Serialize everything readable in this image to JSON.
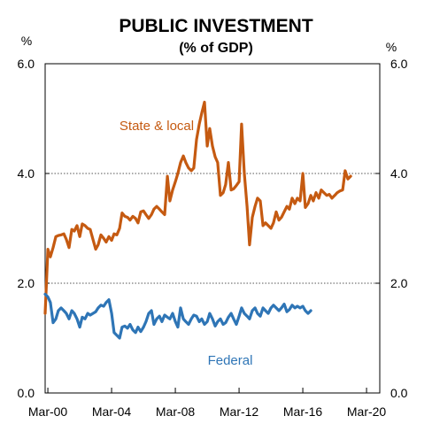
{
  "chart_data": {
    "type": "line",
    "title": "PUBLIC INVESTMENT",
    "subtitle": "(% of GDP)",
    "ylabel_left": "%",
    "ylabel_right": "%",
    "ylim": [
      0,
      6
    ],
    "yticks": [
      "0.0",
      "2.0",
      "4.0",
      "6.0"
    ],
    "xlim": [
      2000.0,
      2021.0
    ],
    "xticks": [
      {
        "x": 2000.17,
        "label": "Mar-00"
      },
      {
        "x": 2004.17,
        "label": "Mar-04"
      },
      {
        "x": 2008.17,
        "label": "Mar-08"
      },
      {
        "x": 2012.17,
        "label": "Mar-12"
      },
      {
        "x": 2016.17,
        "label": "Mar-16"
      },
      {
        "x": 2020.17,
        "label": "Mar-20"
      }
    ],
    "grid": "horizontal dotted at 2.0 and 4.0",
    "colors": {
      "state": "#c55a11",
      "federal": "#2e75b6"
    },
    "series": [
      {
        "name": "State & local",
        "color": "#c55a11",
        "points": [
          [
            2000.0,
            1.45
          ],
          [
            2000.17,
            2.62
          ],
          [
            2000.33,
            2.48
          ],
          [
            2000.5,
            2.65
          ],
          [
            2000.67,
            2.85
          ],
          [
            2000.83,
            2.87
          ],
          [
            2001.0,
            2.88
          ],
          [
            2001.17,
            2.9
          ],
          [
            2001.33,
            2.8
          ],
          [
            2001.5,
            2.65
          ],
          [
            2001.67,
            2.98
          ],
          [
            2001.83,
            2.95
          ],
          [
            2002.0,
            3.05
          ],
          [
            2002.17,
            2.85
          ],
          [
            2002.33,
            3.08
          ],
          [
            2002.5,
            3.05
          ],
          [
            2002.67,
            3.0
          ],
          [
            2002.83,
            2.98
          ],
          [
            2003.0,
            2.8
          ],
          [
            2003.17,
            2.62
          ],
          [
            2003.33,
            2.7
          ],
          [
            2003.5,
            2.88
          ],
          [
            2003.67,
            2.82
          ],
          [
            2003.83,
            2.75
          ],
          [
            2004.0,
            2.85
          ],
          [
            2004.17,
            2.78
          ],
          [
            2004.33,
            2.9
          ],
          [
            2004.5,
            2.88
          ],
          [
            2004.67,
            3.0
          ],
          [
            2004.83,
            3.28
          ],
          [
            2005.0,
            3.22
          ],
          [
            2005.17,
            3.2
          ],
          [
            2005.33,
            3.15
          ],
          [
            2005.5,
            3.22
          ],
          [
            2005.67,
            3.18
          ],
          [
            2005.83,
            3.1
          ],
          [
            2006.0,
            3.3
          ],
          [
            2006.17,
            3.32
          ],
          [
            2006.33,
            3.25
          ],
          [
            2006.5,
            3.18
          ],
          [
            2006.67,
            3.25
          ],
          [
            2006.83,
            3.35
          ],
          [
            2007.0,
            3.4
          ],
          [
            2007.17,
            3.35
          ],
          [
            2007.33,
            3.3
          ],
          [
            2007.5,
            3.25
          ],
          [
            2007.67,
            3.95
          ],
          [
            2007.83,
            3.5
          ],
          [
            2008.0,
            3.7
          ],
          [
            2008.17,
            3.85
          ],
          [
            2008.33,
            4.0
          ],
          [
            2008.5,
            4.2
          ],
          [
            2008.67,
            4.32
          ],
          [
            2008.83,
            4.2
          ],
          [
            2009.0,
            4.1
          ],
          [
            2009.17,
            4.05
          ],
          [
            2009.33,
            4.1
          ],
          [
            2009.5,
            4.62
          ],
          [
            2009.67,
            4.9
          ],
          [
            2009.83,
            5.1
          ],
          [
            2010.0,
            5.3
          ],
          [
            2010.17,
            4.5
          ],
          [
            2010.33,
            4.82
          ],
          [
            2010.5,
            4.5
          ],
          [
            2010.67,
            4.3
          ],
          [
            2010.83,
            4.2
          ],
          [
            2011.0,
            3.6
          ],
          [
            2011.17,
            3.65
          ],
          [
            2011.33,
            3.8
          ],
          [
            2011.5,
            4.2
          ],
          [
            2011.67,
            3.7
          ],
          [
            2011.83,
            3.72
          ],
          [
            2012.0,
            3.78
          ],
          [
            2012.17,
            3.85
          ],
          [
            2012.33,
            4.9
          ],
          [
            2012.5,
            4.0
          ],
          [
            2012.67,
            3.4
          ],
          [
            2012.83,
            2.7
          ],
          [
            2013.0,
            3.2
          ],
          [
            2013.17,
            3.4
          ],
          [
            2013.33,
            3.55
          ],
          [
            2013.5,
            3.5
          ],
          [
            2013.67,
            3.05
          ],
          [
            2013.83,
            3.1
          ],
          [
            2014.0,
            3.05
          ],
          [
            2014.17,
            3.0
          ],
          [
            2014.33,
            3.1
          ],
          [
            2014.5,
            3.3
          ],
          [
            2014.67,
            3.15
          ],
          [
            2014.83,
            3.2
          ],
          [
            2015.0,
            3.3
          ],
          [
            2015.17,
            3.4
          ],
          [
            2015.33,
            3.35
          ],
          [
            2015.5,
            3.55
          ],
          [
            2015.67,
            3.45
          ],
          [
            2015.83,
            3.55
          ],
          [
            2016.0,
            3.5
          ],
          [
            2016.17,
            4.0
          ],
          [
            2016.33,
            3.38
          ],
          [
            2016.5,
            3.45
          ],
          [
            2016.67,
            3.6
          ],
          [
            2016.83,
            3.5
          ],
          [
            2017.0,
            3.65
          ],
          [
            2017.17,
            3.55
          ],
          [
            2017.33,
            3.7
          ],
          [
            2017.5,
            3.65
          ],
          [
            2017.67,
            3.6
          ],
          [
            2017.83,
            3.62
          ],
          [
            2018.0,
            3.55
          ],
          [
            2018.17,
            3.6
          ],
          [
            2018.33,
            3.65
          ],
          [
            2018.5,
            3.68
          ],
          [
            2018.67,
            3.7
          ],
          [
            2018.83,
            4.05
          ],
          [
            2019.0,
            3.9
          ],
          [
            2019.17,
            3.95
          ]
        ]
      },
      {
        "name": "Federal",
        "color": "#2e75b6",
        "points": [
          [
            2000.0,
            1.8
          ],
          [
            2000.17,
            1.75
          ],
          [
            2000.33,
            1.65
          ],
          [
            2000.5,
            1.28
          ],
          [
            2000.67,
            1.35
          ],
          [
            2000.83,
            1.5
          ],
          [
            2001.0,
            1.55
          ],
          [
            2001.17,
            1.5
          ],
          [
            2001.33,
            1.45
          ],
          [
            2001.5,
            1.35
          ],
          [
            2001.67,
            1.5
          ],
          [
            2001.83,
            1.45
          ],
          [
            2002.0,
            1.35
          ],
          [
            2002.17,
            1.2
          ],
          [
            2002.33,
            1.38
          ],
          [
            2002.5,
            1.35
          ],
          [
            2002.67,
            1.45
          ],
          [
            2002.83,
            1.42
          ],
          [
            2003.0,
            1.45
          ],
          [
            2003.17,
            1.48
          ],
          [
            2003.33,
            1.55
          ],
          [
            2003.5,
            1.6
          ],
          [
            2003.67,
            1.58
          ],
          [
            2003.83,
            1.65
          ],
          [
            2004.0,
            1.7
          ],
          [
            2004.17,
            1.45
          ],
          [
            2004.33,
            1.1
          ],
          [
            2004.5,
            1.05
          ],
          [
            2004.67,
            1.0
          ],
          [
            2004.83,
            1.2
          ],
          [
            2005.0,
            1.22
          ],
          [
            2005.17,
            1.18
          ],
          [
            2005.33,
            1.25
          ],
          [
            2005.5,
            1.15
          ],
          [
            2005.67,
            1.1
          ],
          [
            2005.83,
            1.2
          ],
          [
            2006.0,
            1.12
          ],
          [
            2006.17,
            1.2
          ],
          [
            2006.33,
            1.3
          ],
          [
            2006.5,
            1.45
          ],
          [
            2006.67,
            1.5
          ],
          [
            2006.83,
            1.25
          ],
          [
            2007.0,
            1.35
          ],
          [
            2007.17,
            1.4
          ],
          [
            2007.33,
            1.3
          ],
          [
            2007.5,
            1.42
          ],
          [
            2007.67,
            1.38
          ],
          [
            2007.83,
            1.35
          ],
          [
            2008.0,
            1.45
          ],
          [
            2008.17,
            1.3
          ],
          [
            2008.33,
            1.2
          ],
          [
            2008.5,
            1.55
          ],
          [
            2008.67,
            1.35
          ],
          [
            2008.83,
            1.3
          ],
          [
            2009.0,
            1.25
          ],
          [
            2009.17,
            1.35
          ],
          [
            2009.33,
            1.42
          ],
          [
            2009.5,
            1.4
          ],
          [
            2009.67,
            1.3
          ],
          [
            2009.83,
            1.35
          ],
          [
            2010.0,
            1.25
          ],
          [
            2010.17,
            1.3
          ],
          [
            2010.33,
            1.45
          ],
          [
            2010.5,
            1.35
          ],
          [
            2010.67,
            1.22
          ],
          [
            2010.83,
            1.3
          ],
          [
            2011.0,
            1.35
          ],
          [
            2011.17,
            1.25
          ],
          [
            2011.33,
            1.28
          ],
          [
            2011.5,
            1.38
          ],
          [
            2011.67,
            1.45
          ],
          [
            2011.83,
            1.35
          ],
          [
            2012.0,
            1.25
          ],
          [
            2012.17,
            1.4
          ],
          [
            2012.33,
            1.55
          ],
          [
            2012.5,
            1.45
          ],
          [
            2012.67,
            1.4
          ],
          [
            2012.83,
            1.35
          ],
          [
            2013.0,
            1.5
          ],
          [
            2013.17,
            1.55
          ],
          [
            2013.33,
            1.45
          ],
          [
            2013.5,
            1.4
          ],
          [
            2013.67,
            1.55
          ],
          [
            2013.83,
            1.5
          ],
          [
            2014.0,
            1.45
          ],
          [
            2014.17,
            1.55
          ],
          [
            2014.33,
            1.6
          ],
          [
            2014.5,
            1.55
          ],
          [
            2014.67,
            1.5
          ],
          [
            2014.83,
            1.55
          ],
          [
            2015.0,
            1.62
          ],
          [
            2015.17,
            1.48
          ],
          [
            2015.33,
            1.52
          ],
          [
            2015.5,
            1.6
          ],
          [
            2015.67,
            1.55
          ],
          [
            2015.83,
            1.58
          ],
          [
            2016.0,
            1.55
          ],
          [
            2016.17,
            1.58
          ],
          [
            2016.33,
            1.5
          ],
          [
            2016.5,
            1.45
          ],
          [
            2016.67,
            1.5
          ]
        ]
      }
    ],
    "annotations": [
      {
        "text": "State & local",
        "series": "State & local"
      },
      {
        "text": "Federal",
        "series": "Federal"
      }
    ]
  }
}
